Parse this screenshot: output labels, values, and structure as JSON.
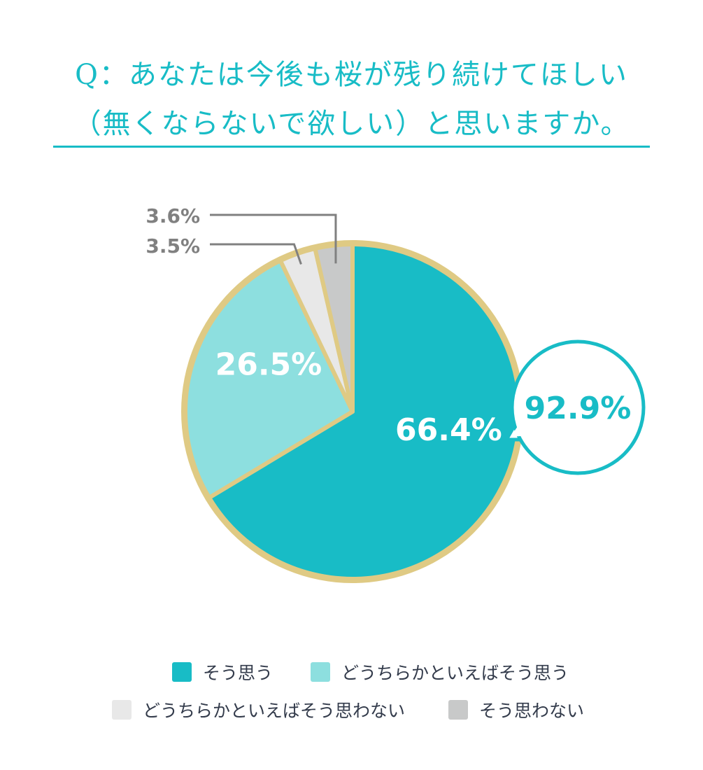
{
  "title": {
    "line1": "Q：あなたは今後も桜が残り続けてほしい",
    "line2": "（無くならないで欲しい）と思いますか。"
  },
  "chart_data": {
    "type": "pie",
    "slices": [
      {
        "label": "そう思う",
        "value": 66.4,
        "display": "66.4%",
        "color": "#18bcc6"
      },
      {
        "label": "どうちらかといえばそう思う",
        "value": 26.5,
        "display": "26.5%",
        "color": "#8ddfdf"
      },
      {
        "label": "どうちらかといえばそう思わない",
        "value": 3.5,
        "display": "3.5%",
        "color": "#e8e8e8"
      },
      {
        "label": "そう思わない",
        "value": 3.6,
        "display": "3.6%",
        "color": "#c8c9c9"
      }
    ],
    "callout": {
      "value": 92.9,
      "display": "92.9%"
    },
    "border_color": "#dfca84",
    "legend_placement": "bottom"
  }
}
